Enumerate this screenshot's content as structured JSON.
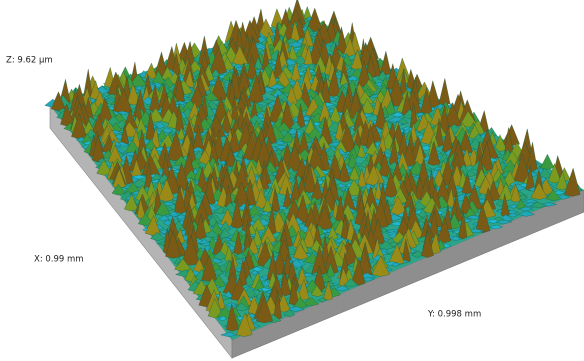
{
  "labels": {
    "z": "Z: 9.62 µm",
    "x": "X: 0.99 mm",
    "y": "Y: 0.998 mm"
  }
}
